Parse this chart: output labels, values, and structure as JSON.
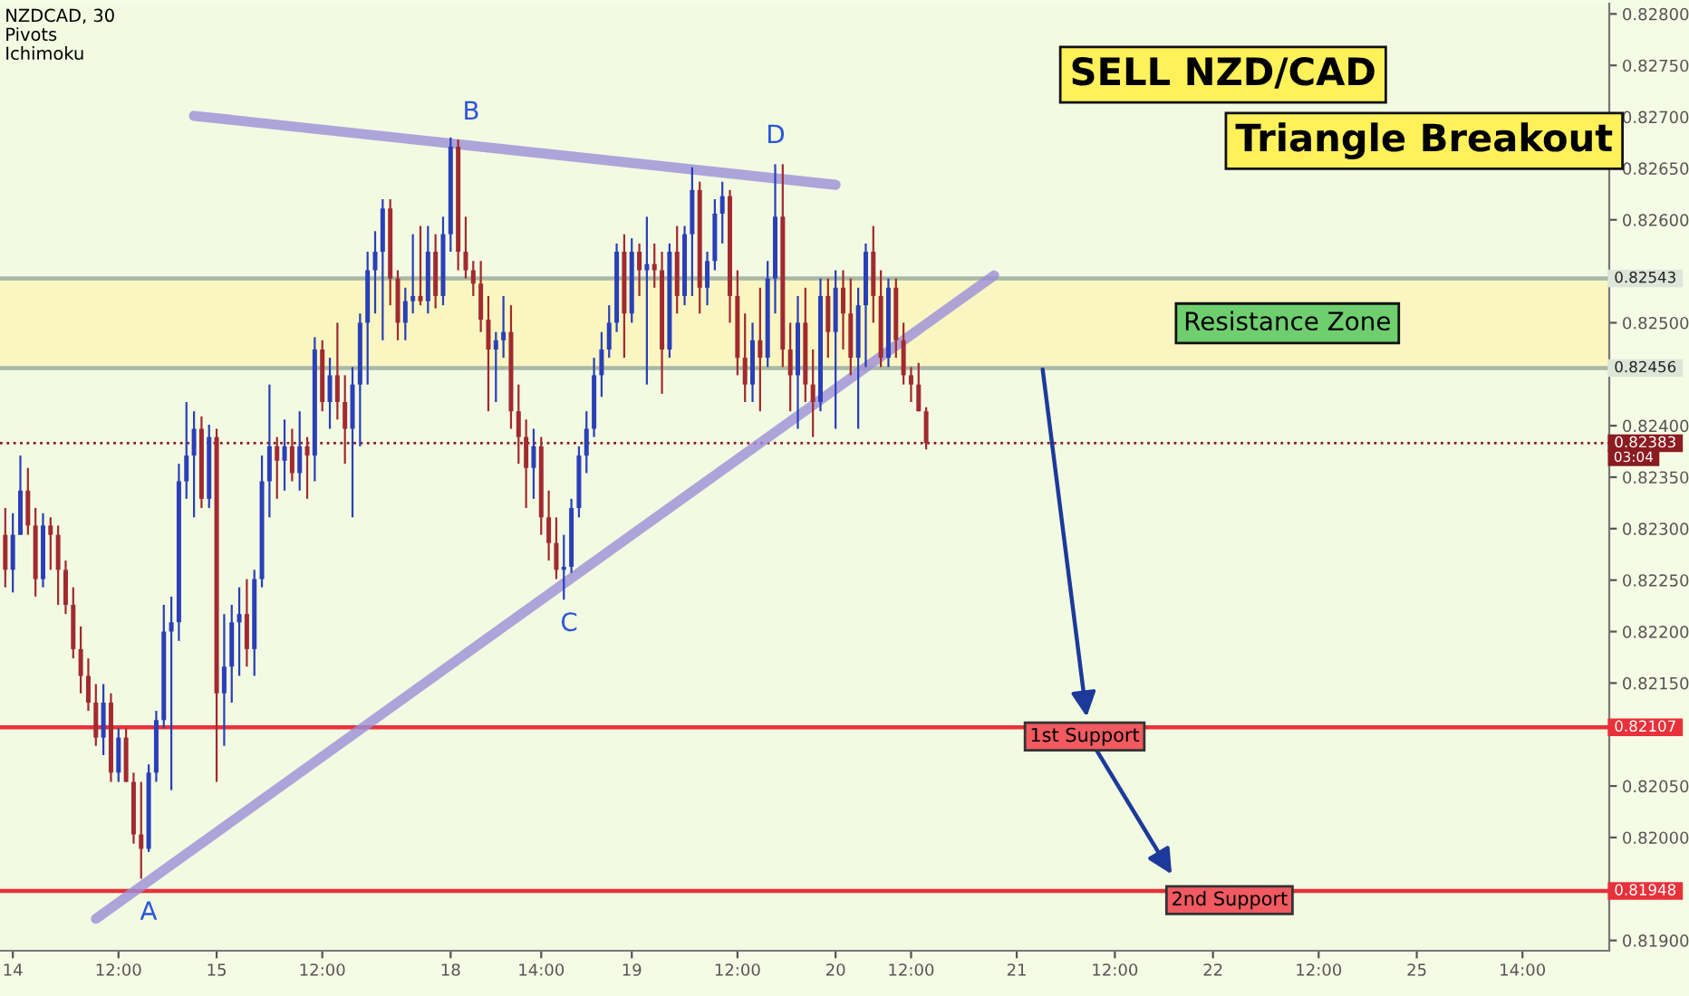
{
  "chart_data": {
    "type": "candlestick",
    "categories": [
      null,
      "14",
      null,
      null,
      null,
      null,
      null,
      null,
      null,
      null,
      null,
      null,
      null,
      null,
      null,
      "12:00",
      null,
      null,
      null,
      null,
      null,
      null,
      null,
      null,
      null,
      null,
      null,
      null,
      "15",
      null,
      null,
      null,
      null,
      null,
      null,
      null,
      null,
      null,
      null,
      null,
      null,
      null,
      "12:00",
      null,
      null,
      null,
      null,
      null,
      null,
      null,
      null,
      null,
      null,
      null,
      null,
      null,
      null,
      null,
      null,
      "18",
      null,
      null,
      null,
      null,
      null,
      null,
      null,
      null,
      null,
      null,
      null,
      "14:00",
      null,
      null,
      null,
      null,
      null,
      null,
      null,
      null,
      null,
      null,
      null,
      "19",
      null,
      null,
      null,
      null,
      null,
      null,
      null,
      null,
      null,
      null,
      null,
      null,
      null,
      "12:00",
      null,
      null,
      null,
      null,
      null,
      null,
      null,
      null,
      null,
      null,
      null,
      null,
      "20",
      null,
      null,
      null,
      null,
      null,
      null,
      null,
      null,
      null,
      "12:00",
      null,
      null,
      null,
      null,
      null,
      null,
      null,
      null,
      null,
      null,
      null,
      null,
      null,
      "21",
      null,
      null,
      null,
      null,
      null,
      null,
      null,
      null,
      null,
      null,
      null,
      null,
      "12:00",
      null,
      null,
      null,
      null,
      null,
      null,
      null,
      null,
      null,
      null,
      null,
      null,
      "22",
      null,
      null,
      null,
      null,
      null,
      null,
      null,
      null,
      null,
      null,
      null,
      null,
      null,
      "12:00",
      null,
      null,
      null,
      null,
      null,
      null,
      null,
      null,
      null,
      null,
      null,
      null,
      "25",
      null,
      null,
      null,
      null,
      null,
      null,
      null,
      null,
      null,
      null,
      null,
      null,
      null,
      "14:00",
      null,
      null,
      null,
      null,
      null,
      null,
      null,
      null,
      null,
      null,
      null
    ],
    "ohlc": [
      [
        0.82294,
        0.8232,
        0.82243,
        0.8226
      ],
      [
        0.8226,
        0.82315,
        0.82238,
        0.82294
      ],
      [
        0.82294,
        0.82371,
        0.82294,
        0.82337
      ],
      [
        0.82337,
        0.82359,
        0.82294,
        0.82303
      ],
      [
        0.82303,
        0.8232,
        0.82234,
        0.82251
      ],
      [
        0.82251,
        0.82315,
        0.82243,
        0.82303
      ],
      [
        0.82303,
        0.82311,
        0.8226,
        0.82294
      ],
      [
        0.82294,
        0.82303,
        0.82226,
        0.8226
      ],
      [
        0.8226,
        0.82269,
        0.82217,
        0.82226
      ],
      [
        0.82226,
        0.82243,
        0.82174,
        0.82183
      ],
      [
        0.82183,
        0.82205,
        0.8214,
        0.82157
      ],
      [
        0.82157,
        0.82174,
        0.82123,
        0.82131
      ],
      [
        0.82131,
        0.82149,
        0.82089,
        0.82097
      ],
      [
        0.82097,
        0.82149,
        0.8208,
        0.82131
      ],
      [
        0.82131,
        0.8214,
        0.82054,
        0.82063
      ],
      [
        0.82063,
        0.82106,
        0.82054,
        0.82097
      ],
      [
        0.82097,
        0.82106,
        0.82054,
        0.82054
      ],
      [
        0.82054,
        0.82063,
        0.81994,
        0.82003
      ],
      [
        0.82003,
        0.82054,
        0.8196,
        0.81989
      ],
      [
        0.81989,
        0.82071,
        0.81986,
        0.82063
      ],
      [
        0.82063,
        0.82123,
        0.82054,
        0.82114
      ],
      [
        0.82114,
        0.82226,
        0.82106,
        0.822
      ],
      [
        0.822,
        0.82234,
        0.82046,
        0.82209
      ],
      [
        0.82209,
        0.82363,
        0.82191,
        0.82346
      ],
      [
        0.82346,
        0.82423,
        0.82329,
        0.82371
      ],
      [
        0.82371,
        0.82414,
        0.82311,
        0.82397
      ],
      [
        0.82397,
        0.82409,
        0.8232,
        0.82329
      ],
      [
        0.82329,
        0.82401,
        0.8232,
        0.82389
      ],
      [
        0.82389,
        0.82397,
        0.82054,
        0.8214
      ],
      [
        0.8214,
        0.82217,
        0.82089,
        0.82166
      ],
      [
        0.82166,
        0.82226,
        0.82131,
        0.82209
      ],
      [
        0.82209,
        0.82243,
        0.82157,
        0.82217
      ],
      [
        0.82217,
        0.82251,
        0.82166,
        0.82183
      ],
      [
        0.82183,
        0.8226,
        0.82157,
        0.82251
      ],
      [
        0.82251,
        0.82371,
        0.82243,
        0.82346
      ],
      [
        0.82346,
        0.8244,
        0.82311,
        0.8238
      ],
      [
        0.8238,
        0.82389,
        0.82329,
        0.82366
      ],
      [
        0.82366,
        0.82406,
        0.82337,
        0.8238
      ],
      [
        0.8238,
        0.82397,
        0.82346,
        0.82354
      ],
      [
        0.82354,
        0.82414,
        0.82337,
        0.8238
      ],
      [
        0.8238,
        0.82389,
        0.82329,
        0.82371
      ],
      [
        0.82371,
        0.82486,
        0.82346,
        0.82474
      ],
      [
        0.82474,
        0.82483,
        0.82414,
        0.82423
      ],
      [
        0.82423,
        0.82466,
        0.82397,
        0.82449
      ],
      [
        0.82449,
        0.825,
        0.82406,
        0.82423
      ],
      [
        0.82423,
        0.82449,
        0.82363,
        0.82397
      ],
      [
        0.82397,
        0.82457,
        0.82311,
        0.8244
      ],
      [
        0.8244,
        0.82509,
        0.8238,
        0.825
      ],
      [
        0.825,
        0.82569,
        0.8244,
        0.82551
      ],
      [
        0.82551,
        0.82589,
        0.82509,
        0.82569
      ],
      [
        0.82569,
        0.8262,
        0.82483,
        0.82611
      ],
      [
        0.82611,
        0.8262,
        0.82517,
        0.82543
      ],
      [
        0.82543,
        0.82551,
        0.82483,
        0.825
      ],
      [
        0.825,
        0.82534,
        0.82483,
        0.82521
      ],
      [
        0.82521,
        0.82586,
        0.82509,
        0.82526
      ],
      [
        0.82526,
        0.82594,
        0.82517,
        0.82521
      ],
      [
        0.82521,
        0.82594,
        0.82509,
        0.82569
      ],
      [
        0.82569,
        0.82586,
        0.82514,
        0.82526
      ],
      [
        0.82526,
        0.82603,
        0.82517,
        0.82586
      ],
      [
        0.82586,
        0.8268,
        0.82569,
        0.82671
      ],
      [
        0.82671,
        0.82678,
        0.82551,
        0.82569
      ],
      [
        0.82569,
        0.82603,
        0.82543,
        0.82551
      ],
      [
        0.82551,
        0.8256,
        0.82526,
        0.82538
      ],
      [
        0.82538,
        0.8256,
        0.82491,
        0.82503
      ],
      [
        0.82503,
        0.82526,
        0.82414,
        0.82474
      ],
      [
        0.82474,
        0.82491,
        0.82423,
        0.82483
      ],
      [
        0.82483,
        0.82526,
        0.82466,
        0.82491
      ],
      [
        0.82491,
        0.82517,
        0.82397,
        0.82414
      ],
      [
        0.82414,
        0.8244,
        0.82363,
        0.82389
      ],
      [
        0.82389,
        0.82406,
        0.8232,
        0.82359
      ],
      [
        0.82359,
        0.82397,
        0.82329,
        0.8238
      ],
      [
        0.8238,
        0.82389,
        0.82294,
        0.82311
      ],
      [
        0.82311,
        0.82337,
        0.82269,
        0.82286
      ],
      [
        0.82286,
        0.82311,
        0.82251,
        0.8226
      ],
      [
        0.8226,
        0.82294,
        0.82231,
        0.82263
      ],
      [
        0.82263,
        0.82329,
        0.82257,
        0.8232
      ],
      [
        0.8232,
        0.8238,
        0.82311,
        0.82371
      ],
      [
        0.82371,
        0.82414,
        0.82354,
        0.82397
      ],
      [
        0.82397,
        0.82466,
        0.82389,
        0.82449
      ],
      [
        0.82449,
        0.82491,
        0.82428,
        0.82474
      ],
      [
        0.82474,
        0.82517,
        0.82466,
        0.825
      ],
      [
        0.825,
        0.82577,
        0.82491,
        0.82569
      ],
      [
        0.82569,
        0.82586,
        0.82466,
        0.82509
      ],
      [
        0.82509,
        0.82582,
        0.825,
        0.82569
      ],
      [
        0.82569,
        0.82577,
        0.82526,
        0.82551
      ],
      [
        0.82551,
        0.82603,
        0.8244,
        0.82557
      ],
      [
        0.82557,
        0.82577,
        0.82534,
        0.82551
      ],
      [
        0.82551,
        0.82569,
        0.82431,
        0.82474
      ],
      [
        0.82474,
        0.82577,
        0.82466,
        0.82569
      ],
      [
        0.82569,
        0.82594,
        0.82509,
        0.82526
      ],
      [
        0.82526,
        0.82594,
        0.82517,
        0.82586
      ],
      [
        0.82586,
        0.82651,
        0.82526,
        0.82629
      ],
      [
        0.82629,
        0.82637,
        0.82509,
        0.82534
      ],
      [
        0.82534,
        0.82569,
        0.82517,
        0.8256
      ],
      [
        0.8256,
        0.8262,
        0.82551,
        0.82606
      ],
      [
        0.82606,
        0.82637,
        0.82577,
        0.82623
      ],
      [
        0.82623,
        0.82629,
        0.825,
        0.82526
      ],
      [
        0.82526,
        0.82551,
        0.82449,
        0.82466
      ],
      [
        0.82466,
        0.82509,
        0.82423,
        0.8244
      ],
      [
        0.8244,
        0.825,
        0.82423,
        0.82483
      ],
      [
        0.82483,
        0.82534,
        0.82414,
        0.82466
      ],
      [
        0.82466,
        0.8256,
        0.82457,
        0.82543
      ],
      [
        0.82543,
        0.82654,
        0.82509,
        0.82603
      ],
      [
        0.82603,
        0.82654,
        0.82457,
        0.82474
      ],
      [
        0.82474,
        0.825,
        0.82414,
        0.82449
      ],
      [
        0.82449,
        0.82526,
        0.82397,
        0.825
      ],
      [
        0.825,
        0.82534,
        0.82423,
        0.8244
      ],
      [
        0.8244,
        0.82474,
        0.82389,
        0.82423
      ],
      [
        0.82423,
        0.82543,
        0.82414,
        0.82526
      ],
      [
        0.82526,
        0.82543,
        0.82466,
        0.82491
      ],
      [
        0.82491,
        0.82551,
        0.82397,
        0.82534
      ],
      [
        0.82534,
        0.82551,
        0.82474,
        0.82509
      ],
      [
        0.82509,
        0.82543,
        0.82449,
        0.82466
      ],
      [
        0.82466,
        0.82534,
        0.82397,
        0.82517
      ],
      [
        0.82517,
        0.82577,
        0.82457,
        0.82569
      ],
      [
        0.82569,
        0.82594,
        0.825,
        0.82526
      ],
      [
        0.82526,
        0.82551,
        0.82457,
        0.82466
      ],
      [
        0.82466,
        0.82543,
        0.82457,
        0.82534
      ],
      [
        0.82534,
        0.82543,
        0.82466,
        0.82483
      ],
      [
        0.82483,
        0.825,
        0.8244,
        0.82449
      ],
      [
        0.82449,
        0.82457,
        0.82423,
        0.8244
      ],
      [
        0.8244,
        0.82461,
        0.82414,
        0.82414
      ],
      [
        0.82414,
        0.82418,
        0.82377,
        0.82383
      ],
      null,
      null,
      null,
      null,
      null,
      null,
      null,
      null,
      null,
      null,
      null,
      null,
      null,
      null,
      null,
      null,
      null,
      null,
      null,
      null,
      null,
      null,
      null,
      null,
      null,
      null,
      null,
      null,
      null,
      null,
      null,
      null,
      null,
      null,
      null,
      null,
      null,
      null,
      null,
      null,
      null,
      null,
      null,
      null,
      null,
      null,
      null,
      null,
      null,
      null,
      null,
      null,
      null,
      null,
      null,
      null,
      null,
      null,
      null,
      null,
      null,
      null,
      null,
      null,
      null,
      null,
      null,
      null,
      null,
      null,
      null,
      null,
      null,
      null,
      null,
      null,
      null,
      null,
      null,
      null,
      null,
      null,
      null,
      null,
      null,
      null,
      null,
      null,
      null,
      null
    ],
    "series": [
      {
        "type": "line",
        "color": "#9b8fd8",
        "values": [
          null,
          null,
          null,
          null,
          null,
          null,
          null,
          null,
          null,
          null,
          null,
          null,
          null,
          null,
          null,
          null,
          null,
          null,
          null,
          null,
          null,
          null,
          null,
          null,
          null,
          0.82701,
          null,
          null,
          null,
          null,
          null,
          null,
          null,
          null,
          null,
          null,
          null,
          null,
          null,
          null,
          null,
          null,
          null,
          null,
          null,
          null,
          null,
          null,
          null,
          null,
          null,
          null,
          null,
          null,
          null,
          null,
          null,
          null,
          null,
          null,
          null,
          null,
          null,
          null,
          null,
          null,
          null,
          null,
          null,
          null,
          null,
          null,
          null,
          null,
          null,
          null,
          null,
          null,
          null,
          null,
          null,
          null,
          null,
          null,
          null,
          null,
          null,
          null,
          null,
          null,
          null,
          null,
          null,
          null,
          null,
          null,
          null,
          null,
          null,
          null,
          null,
          null,
          null,
          null,
          null,
          null,
          null,
          null,
          null,
          null,
          0.82634,
          null,
          null,
          null,
          null,
          null,
          null,
          null,
          null,
          null,
          null,
          null,
          null,
          null,
          null,
          null,
          null,
          null,
          null,
          null,
          null,
          null,
          null,
          null,
          null,
          null,
          null,
          null,
          null,
          null,
          null,
          null,
          null,
          null,
          null,
          null,
          null,
          null,
          null,
          null,
          null,
          null,
          null,
          null,
          null,
          null,
          null,
          null,
          null,
          null,
          null,
          null,
          null,
          null,
          null,
          null,
          null,
          null,
          null,
          null,
          null,
          null,
          null,
          null,
          null,
          null,
          null,
          null,
          null,
          null,
          null,
          null,
          null,
          null,
          null,
          null,
          null,
          null,
          null,
          null,
          null,
          null,
          null,
          null,
          null,
          null,
          null,
          null,
          null,
          null,
          null,
          null,
          null,
          null,
          null,
          null,
          null,
          null,
          null,
          null,
          null,
          null,
          null
        ]
      },
      {
        "type": "line",
        "color": "#9b8fd8",
        "values": [
          null,
          null,
          null,
          null,
          null,
          null,
          null,
          null,
          null,
          null,
          null,
          null,
          0.81921,
          null,
          null,
          null,
          null,
          null,
          null,
          null,
          null,
          null,
          null,
          null,
          null,
          null,
          null,
          null,
          null,
          null,
          null,
          null,
          null,
          null,
          null,
          null,
          null,
          null,
          null,
          null,
          null,
          null,
          null,
          null,
          null,
          null,
          null,
          null,
          null,
          null,
          null,
          null,
          null,
          null,
          null,
          null,
          null,
          null,
          null,
          null,
          null,
          null,
          null,
          null,
          null,
          null,
          null,
          null,
          null,
          null,
          null,
          null,
          null,
          null,
          null,
          null,
          null,
          null,
          null,
          null,
          null,
          null,
          null,
          null,
          null,
          null,
          null,
          null,
          null,
          null,
          null,
          null,
          null,
          null,
          null,
          null,
          null,
          null,
          null,
          null,
          null,
          null,
          null,
          null,
          null,
          null,
          null,
          null,
          null,
          null,
          null,
          null,
          null,
          null,
          null,
          null,
          null,
          null,
          null,
          null,
          null,
          null,
          null,
          null,
          null,
          null,
          null,
          null,
          null,
          null,
          null,
          0.82546,
          null,
          null,
          null,
          null,
          null,
          null,
          null,
          null,
          null,
          null,
          null,
          null,
          null,
          null,
          null,
          null,
          null,
          null,
          null,
          null,
          null,
          null,
          null,
          null,
          null,
          null,
          null,
          null,
          null,
          null,
          null,
          null,
          null,
          null,
          null,
          null,
          null,
          null,
          null,
          null,
          null,
          null,
          null,
          null,
          null,
          null,
          null,
          null,
          null,
          null,
          null,
          null,
          null,
          null,
          null,
          null,
          null,
          null,
          null,
          null,
          null,
          null,
          null,
          null,
          null,
          null,
          null,
          null,
          null,
          null,
          null,
          null,
          null,
          null,
          null,
          null,
          null,
          null,
          null,
          null,
          null
        ]
      }
    ],
    "ylim": [
      0.8189,
      0.8281
    ],
    "yticks": [
      {
        "value": 0.828,
        "label": "0.82800"
      },
      {
        "value": 0.8275,
        "label": "0.82750"
      },
      {
        "value": 0.827,
        "label": "0.82700"
      },
      {
        "value": 0.8265,
        "label": "0.82650"
      },
      {
        "value": 0.826,
        "label": "0.82600"
      },
      {
        "value": 0.825,
        "label": "0.82500"
      },
      {
        "value": 0.824,
        "label": "0.82400"
      },
      {
        "value": 0.8235,
        "label": "0.82350"
      },
      {
        "value": 0.823,
        "label": "0.82300"
      },
      {
        "value": 0.8225,
        "label": "0.82250"
      },
      {
        "value": 0.822,
        "label": "0.82200"
      },
      {
        "value": 0.8215,
        "label": "0.82150"
      },
      {
        "value": 0.8205,
        "label": "0.82050"
      },
      {
        "value": 0.82,
        "label": "0.82000"
      },
      {
        "value": 0.819,
        "label": "0.81900"
      }
    ],
    "bands": [
      {
        "axis": "y",
        "from": 0.82456,
        "to": 0.82543,
        "label": "Resistance Zone",
        "color": "#fff3a8"
      }
    ],
    "ref_lines": [
      {
        "axis": "y",
        "value": 0.82543,
        "label": null,
        "color": "#a9b8a6"
      },
      {
        "axis": "y",
        "value": 0.82456,
        "label": null,
        "color": "#a9b8a6"
      },
      {
        "axis": "y",
        "value": 0.82383,
        "label": null,
        "color": "#8a1c22",
        "line_style": "dotted"
      },
      {
        "axis": "y",
        "value": 0.82107,
        "label": "1st Support",
        "color": "#e8313a"
      },
      {
        "axis": "y",
        "value": 0.81948,
        "label": "2nd Support",
        "color": "#e8313a"
      }
    ],
    "annotations": [
      "NZDCAD, 30",
      "Pivots",
      "Ichimoku",
      "SELL NZD/CAD",
      "Triangle Breakout",
      "A",
      "B",
      "C",
      "D",
      "0.82543",
      "0.82456",
      "0.82383",
      "0.82107",
      "0.81948",
      "03:04"
    ],
    "grid": false
  }
}
